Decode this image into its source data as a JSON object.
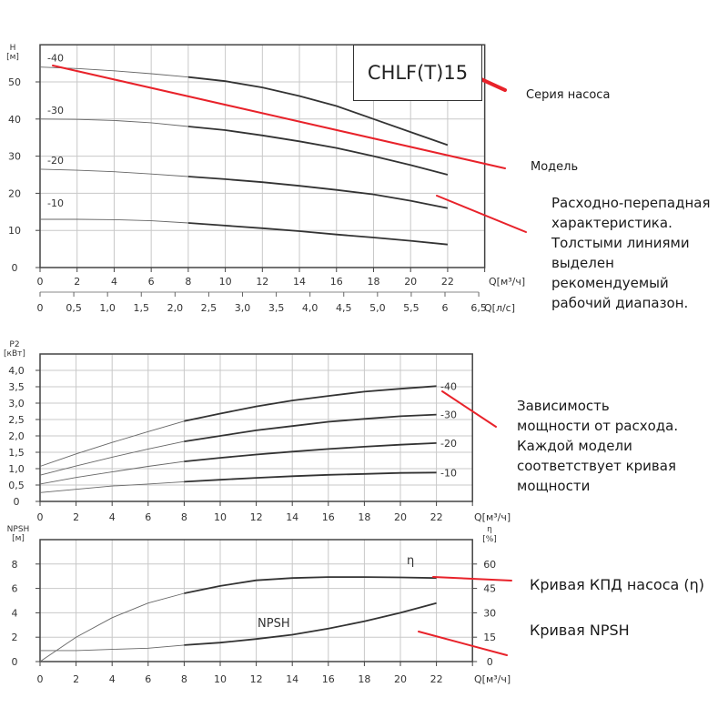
{
  "pump_series": "CHLF(T)15",
  "annotations": {
    "series": "Серия насоса",
    "model": "Модель",
    "head_curve": [
      "Расходно-перепадная",
      "характеристика.",
      "Толстыми линиями",
      "выделен",
      "рекомендуемый",
      "рабочий диапазон."
    ],
    "power_curve": [
      "Зависимость",
      "мощности от расхода.",
      "Каждой модели",
      "соответствует кривая",
      "мощности"
    ],
    "efficiency": "Кривая КПД насоса (η)",
    "npsh": "Кривая NPSH"
  },
  "colors": {
    "curve": "#333333",
    "grid": "#c8c8c8",
    "annotation_line": "#e8222a"
  },
  "chart_data": [
    {
      "type": "line",
      "ylabel": [
        "H",
        "[м]"
      ],
      "xlabel": "Q[м³/ч]",
      "xlabel2": "Q[л/с]",
      "xlim": [
        0,
        24
      ],
      "ylim": [
        0,
        60
      ],
      "grid": true,
      "xticks": [
        "0",
        "2",
        "4",
        "6",
        "8",
        "10",
        "12",
        "14",
        "16",
        "18",
        "20",
        "22"
      ],
      "xticks2": [
        "0",
        "0,5",
        "1,0",
        "1,5",
        "2,0",
        "2,5",
        "3,0",
        "3,5",
        "4,0",
        "4,5",
        "5,0",
        "5,5",
        "6",
        "6,5"
      ],
      "yticks": [
        "0",
        "10",
        "20",
        "30",
        "40",
        "50"
      ],
      "recommended_range": [
        8,
        22
      ],
      "x": [
        0,
        2,
        4,
        6,
        8,
        10,
        12,
        14,
        16,
        18,
        20,
        22
      ],
      "series": [
        {
          "name": "-40",
          "values": [
            54,
            53.6,
            53,
            52.2,
            51.3,
            50.2,
            48.5,
            46.2,
            43.5,
            40,
            36.5,
            33
          ]
        },
        {
          "name": "-30",
          "values": [
            40,
            39.9,
            39.6,
            39,
            38,
            37,
            35.6,
            34,
            32.2,
            30,
            27.6,
            25
          ]
        },
        {
          "name": "-20",
          "values": [
            26.5,
            26.2,
            25.8,
            25.2,
            24.5,
            23.8,
            23,
            22,
            20.9,
            19.7,
            18,
            16
          ]
        },
        {
          "name": "-10",
          "values": [
            13,
            13,
            12.9,
            12.6,
            12,
            11.3,
            10.6,
            9.8,
            8.9,
            8.1,
            7.2,
            6.2
          ]
        }
      ]
    },
    {
      "type": "line",
      "ylabel": [
        "P2",
        "[кВт]"
      ],
      "xlabel": "Q[м³/ч]",
      "xlim": [
        0,
        24
      ],
      "ylim": [
        0,
        4.5
      ],
      "grid": true,
      "xticks": [
        "0",
        "2",
        "4",
        "6",
        "8",
        "10",
        "12",
        "14",
        "16",
        "18",
        "20",
        "22"
      ],
      "yticks": [
        "0",
        "0,5",
        "1,0",
        "1,5",
        "2,0",
        "2,5",
        "3,0",
        "3,5",
        "4,0"
      ],
      "recommended_range": [
        8,
        22
      ],
      "x": [
        0,
        2,
        4,
        6,
        8,
        10,
        12,
        14,
        16,
        18,
        20,
        22
      ],
      "series": [
        {
          "name": "-40",
          "values": [
            1.07,
            1.45,
            1.8,
            2.13,
            2.45,
            2.68,
            2.9,
            3.08,
            3.22,
            3.35,
            3.44,
            3.52
          ]
        },
        {
          "name": "-30",
          "values": [
            0.8,
            1.08,
            1.35,
            1.6,
            1.83,
            2.0,
            2.17,
            2.3,
            2.43,
            2.52,
            2.6,
            2.65
          ]
        },
        {
          "name": "-20",
          "values": [
            0.53,
            0.73,
            0.9,
            1.07,
            1.22,
            1.33,
            1.43,
            1.52,
            1.6,
            1.67,
            1.73,
            1.78
          ]
        },
        {
          "name": "-10",
          "values": [
            0.27,
            0.37,
            0.47,
            0.53,
            0.6,
            0.66,
            0.72,
            0.77,
            0.81,
            0.84,
            0.87,
            0.88
          ]
        }
      ]
    },
    {
      "type": "line",
      "ylabel": [
        "NPSH",
        "[м]"
      ],
      "ylabel_right": [
        "η",
        "[%]"
      ],
      "xlabel": "Q[м³/ч]",
      "xlim": [
        0,
        24
      ],
      "ylim": [
        0,
        10
      ],
      "ylim_right": [
        0,
        75
      ],
      "grid": true,
      "xticks": [
        "0",
        "2",
        "4",
        "6",
        "8",
        "10",
        "12",
        "14",
        "16",
        "18",
        "20",
        "22"
      ],
      "yticks": [
        "0",
        "2",
        "4",
        "6",
        "8"
      ],
      "yticks_right": [
        "0",
        "15",
        "30",
        "45",
        "60"
      ],
      "recommended_range": [
        8,
        22
      ],
      "x": [
        0,
        2,
        4,
        6,
        8,
        10,
        12,
        14,
        16,
        18,
        20,
        22
      ],
      "series": [
        {
          "name": "η",
          "axis": "right",
          "values": [
            0,
            15,
            27,
            36,
            42,
            46.5,
            50,
            51.4,
            52,
            52,
            51.8,
            51.4
          ]
        },
        {
          "name": "NPSH",
          "axis": "left",
          "values": [
            0.9,
            0.9,
            1.0,
            1.1,
            1.35,
            1.55,
            1.85,
            2.2,
            2.7,
            3.3,
            4.0,
            4.8
          ]
        }
      ]
    }
  ]
}
